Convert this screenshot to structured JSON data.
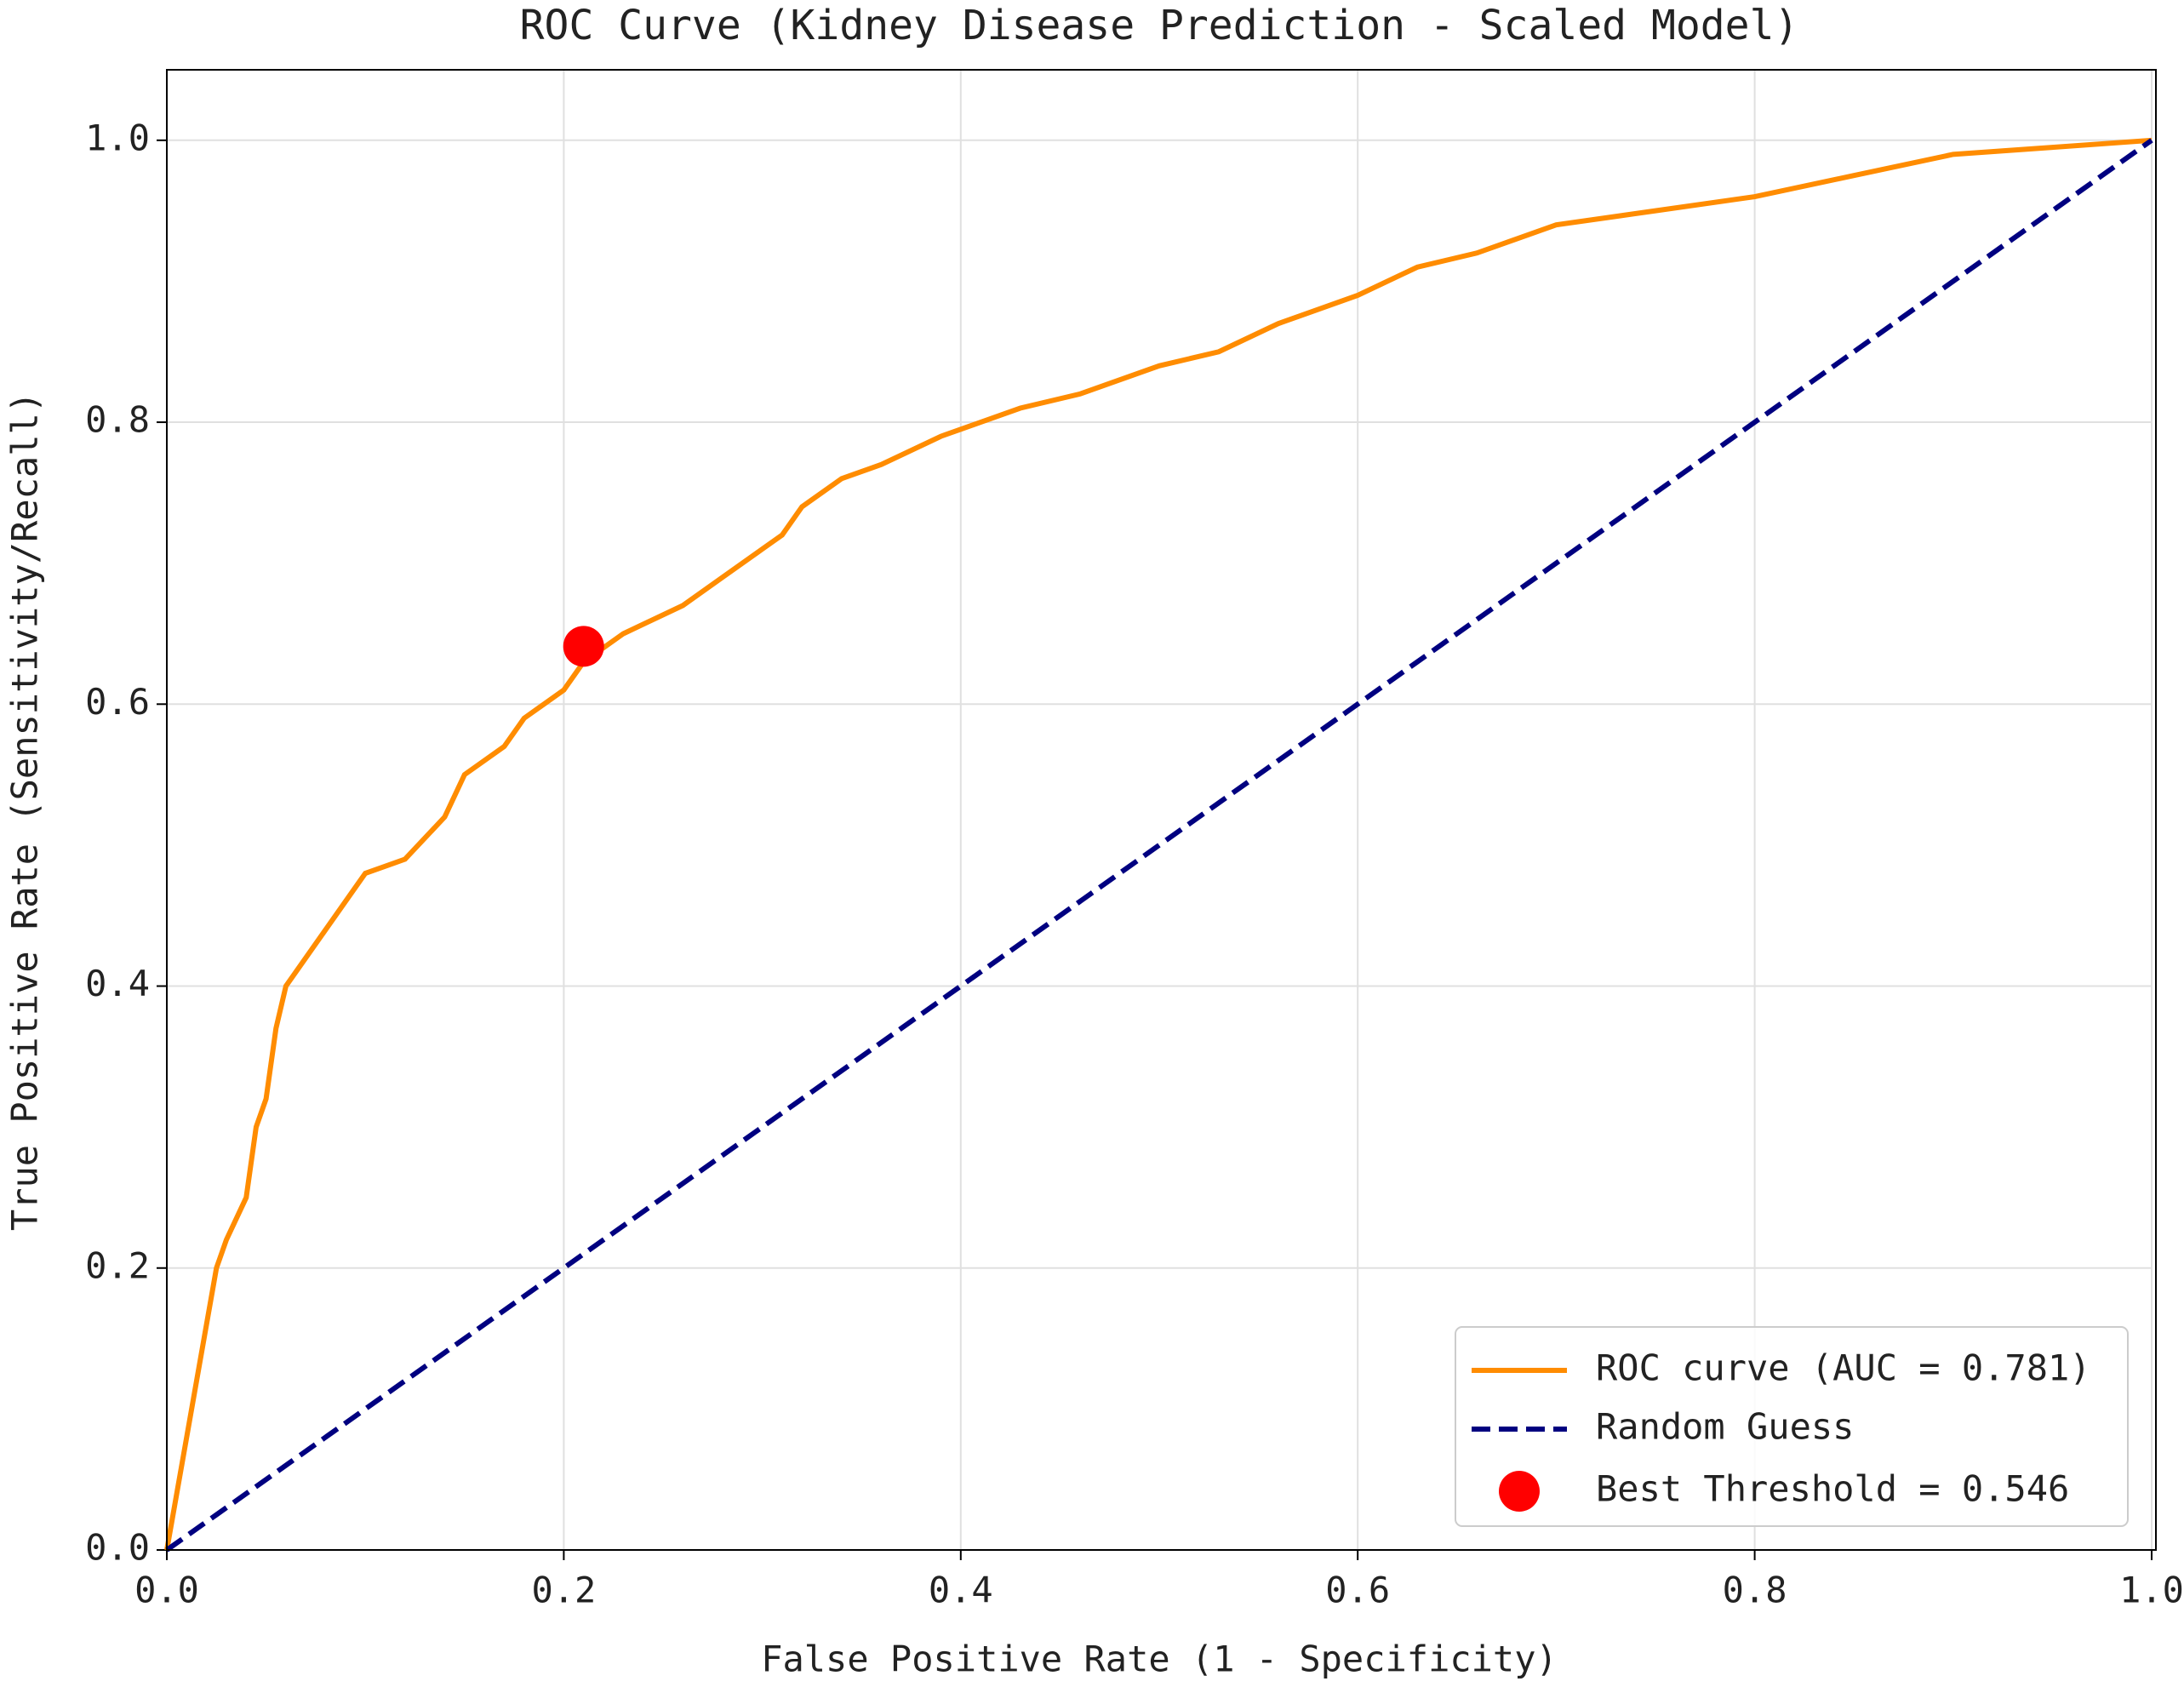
{
  "chart_data": {
    "type": "line",
    "title": "ROC Curve (Kidney Disease Prediction - Scaled Model)",
    "x_label": "False Positive Rate (1 - Specificity)",
    "y_label": "True Positive Rate (Sensitivity/Recall)",
    "xlim": [
      0,
      1
    ],
    "ylim": [
      0,
      1.05
    ],
    "xticks": [
      {
        "value": 0,
        "label": "0.0"
      },
      0.2,
      0.4,
      0.6,
      0.8,
      {
        "value": 1,
        "label": "1.0"
      }
    ],
    "yticks": [
      {
        "value": 0,
        "label": "0.0"
      },
      0.2,
      0.4,
      0.6,
      0.8,
      {
        "value": 1,
        "label": "1.0"
      }
    ],
    "grid": true,
    "legend": "lower right",
    "series": [
      {
        "name": "ROC curve (AUC = 0.781)",
        "color": "#ff8c00",
        "style": "solid",
        "x": [
          0,
          0.005,
          0.01,
          0.015,
          0.02,
          0.025,
          0.03,
          0.04,
          0.045,
          0.05,
          0.055,
          0.06,
          0.07,
          0.08,
          0.09,
          0.1,
          0.12,
          0.14,
          0.15,
          0.17,
          0.18,
          0.2,
          0.21,
          0.23,
          0.26,
          0.28,
          0.3,
          0.31,
          0.32,
          0.34,
          0.36,
          0.39,
          0.41,
          0.43,
          0.46,
          0.5,
          0.53,
          0.56,
          0.6,
          0.63,
          0.66,
          0.7,
          0.75,
          0.8,
          0.85,
          0.9,
          0.95,
          1
        ],
        "values": [
          0,
          0.04,
          0.08,
          0.12,
          0.16,
          0.2,
          0.22,
          0.25,
          0.3,
          0.32,
          0.37,
          0.4,
          0.42,
          0.44,
          0.46,
          0.48,
          0.49,
          0.52,
          0.55,
          0.57,
          0.59,
          0.61,
          0.63,
          0.65,
          0.67,
          0.69,
          0.71,
          0.72,
          0.74,
          0.76,
          0.77,
          0.79,
          0.8,
          0.81,
          0.82,
          0.84,
          0.85,
          0.87,
          0.89,
          0.91,
          0.92,
          0.94,
          0.95,
          0.96,
          0.975,
          0.99,
          0.995,
          1
        ]
      },
      {
        "name": "Random Guess",
        "color": "#000080",
        "style": "dashed",
        "x": [
          0,
          1
        ],
        "values": [
          0,
          1
        ]
      },
      {
        "name": "Best Threshold = 0.546",
        "color": "#ff0000",
        "style": "point",
        "x": [
          0.21
        ],
        "values": [
          0.641
        ]
      }
    ]
  }
}
